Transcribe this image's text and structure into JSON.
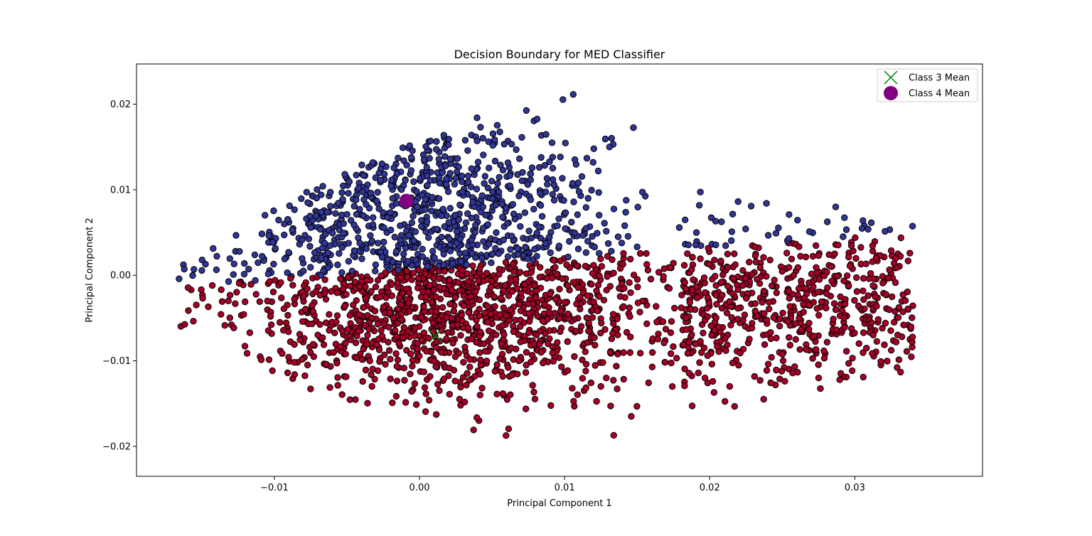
{
  "chart_data": {
    "type": "scatter",
    "title": "Decision Boundary for MED Classifier",
    "xlabel": "Principal Component 1",
    "ylabel": "Principal Component 2",
    "xlim": [
      -0.0195,
      0.0388
    ],
    "ylim": [
      -0.0235,
      0.0247
    ],
    "x_ticks": [
      -0.01,
      0.0,
      0.01,
      0.02,
      0.03
    ],
    "x_tick_labels": [
      "−0.01",
      "0.00",
      "0.01",
      "0.02",
      "0.03"
    ],
    "y_ticks": [
      -0.02,
      -0.01,
      0.0,
      0.01,
      0.02
    ],
    "y_tick_labels": [
      "−0.02",
      "−0.01",
      "0.00",
      "0.01",
      "0.02"
    ],
    "grid": false,
    "legend_position": "top-right",
    "colors": {
      "region_class_3": "#a50026",
      "region_class_4": "#313695",
      "class_3_mean": "#008000",
      "class_4_mean": "#800080",
      "point_edge": "#000000"
    },
    "means": [
      {
        "name": "Class 3 Mean",
        "x": 0.0011,
        "y": -0.0071,
        "marker": "x",
        "color": "#008000"
      },
      {
        "name": "Class 4 Mean",
        "x": -0.0009,
        "y": 0.0087,
        "marker": "o",
        "color": "#800080"
      }
    ],
    "cloud": {
      "x_range": [
        -0.0168,
        0.0362
      ],
      "y_range": [
        -0.0212,
        0.0225
      ],
      "approx_points": 3000
    }
  }
}
